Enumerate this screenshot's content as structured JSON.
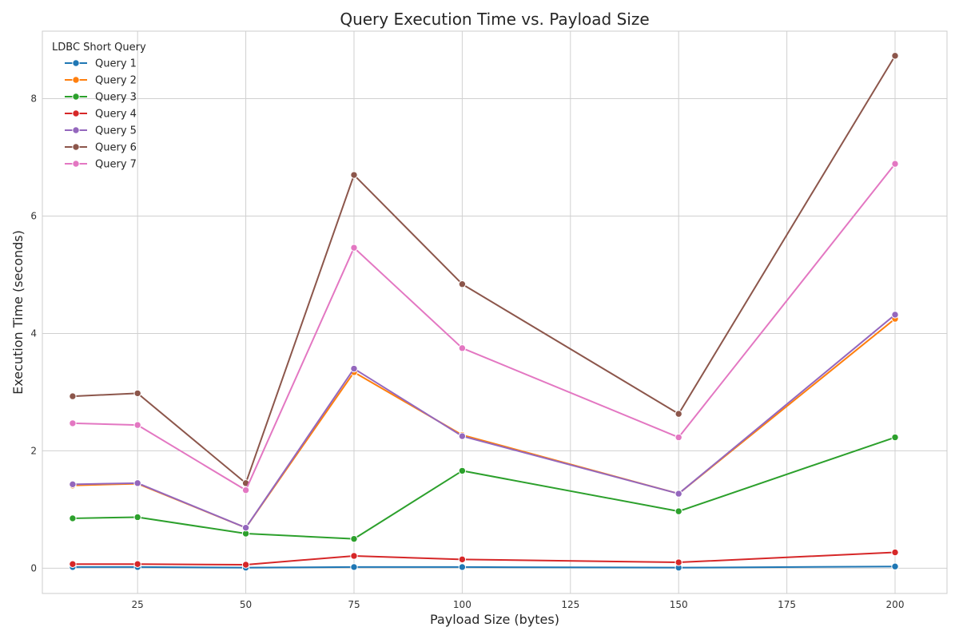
{
  "chart_data": {
    "type": "line",
    "title": "Query Execution Time vs. Payload Size",
    "xlabel": "Payload Size (bytes)",
    "ylabel": "Execution Time (seconds)",
    "xlim": [
      3,
      212
    ],
    "ylim": [
      -0.43,
      9.15
    ],
    "xticks": [
      25,
      50,
      75,
      100,
      125,
      150,
      175,
      200
    ],
    "yticks": [
      0,
      2,
      4,
      6,
      8
    ],
    "grid": true,
    "legend": {
      "title": "LDBC Short Query",
      "placement": "top-left"
    },
    "x": [
      10,
      25,
      50,
      75,
      100,
      150,
      200
    ],
    "series": [
      {
        "name": "Query 1",
        "color": "#1f77b4",
        "values": [
          0.02,
          0.02,
          0.01,
          0.02,
          0.02,
          0.01,
          0.03
        ]
      },
      {
        "name": "Query 2",
        "color": "#ff7f0e",
        "values": [
          1.41,
          1.44,
          0.69,
          3.34,
          2.27,
          1.27,
          4.25
        ]
      },
      {
        "name": "Query 3",
        "color": "#2ca02c",
        "values": [
          0.85,
          0.87,
          0.59,
          0.5,
          1.66,
          0.97,
          2.23
        ]
      },
      {
        "name": "Query 4",
        "color": "#d62728",
        "values": [
          0.07,
          0.07,
          0.06,
          0.21,
          0.15,
          0.1,
          0.27
        ]
      },
      {
        "name": "Query 5",
        "color": "#9467bd",
        "values": [
          1.43,
          1.45,
          0.69,
          3.4,
          2.25,
          1.27,
          4.32
        ]
      },
      {
        "name": "Query 6",
        "color": "#8c564b",
        "values": [
          2.93,
          2.98,
          1.45,
          6.7,
          4.84,
          2.63,
          8.73
        ]
      },
      {
        "name": "Query 7",
        "color": "#e377c2",
        "values": [
          2.47,
          2.44,
          1.33,
          5.46,
          3.75,
          2.23,
          6.89
        ]
      }
    ]
  }
}
